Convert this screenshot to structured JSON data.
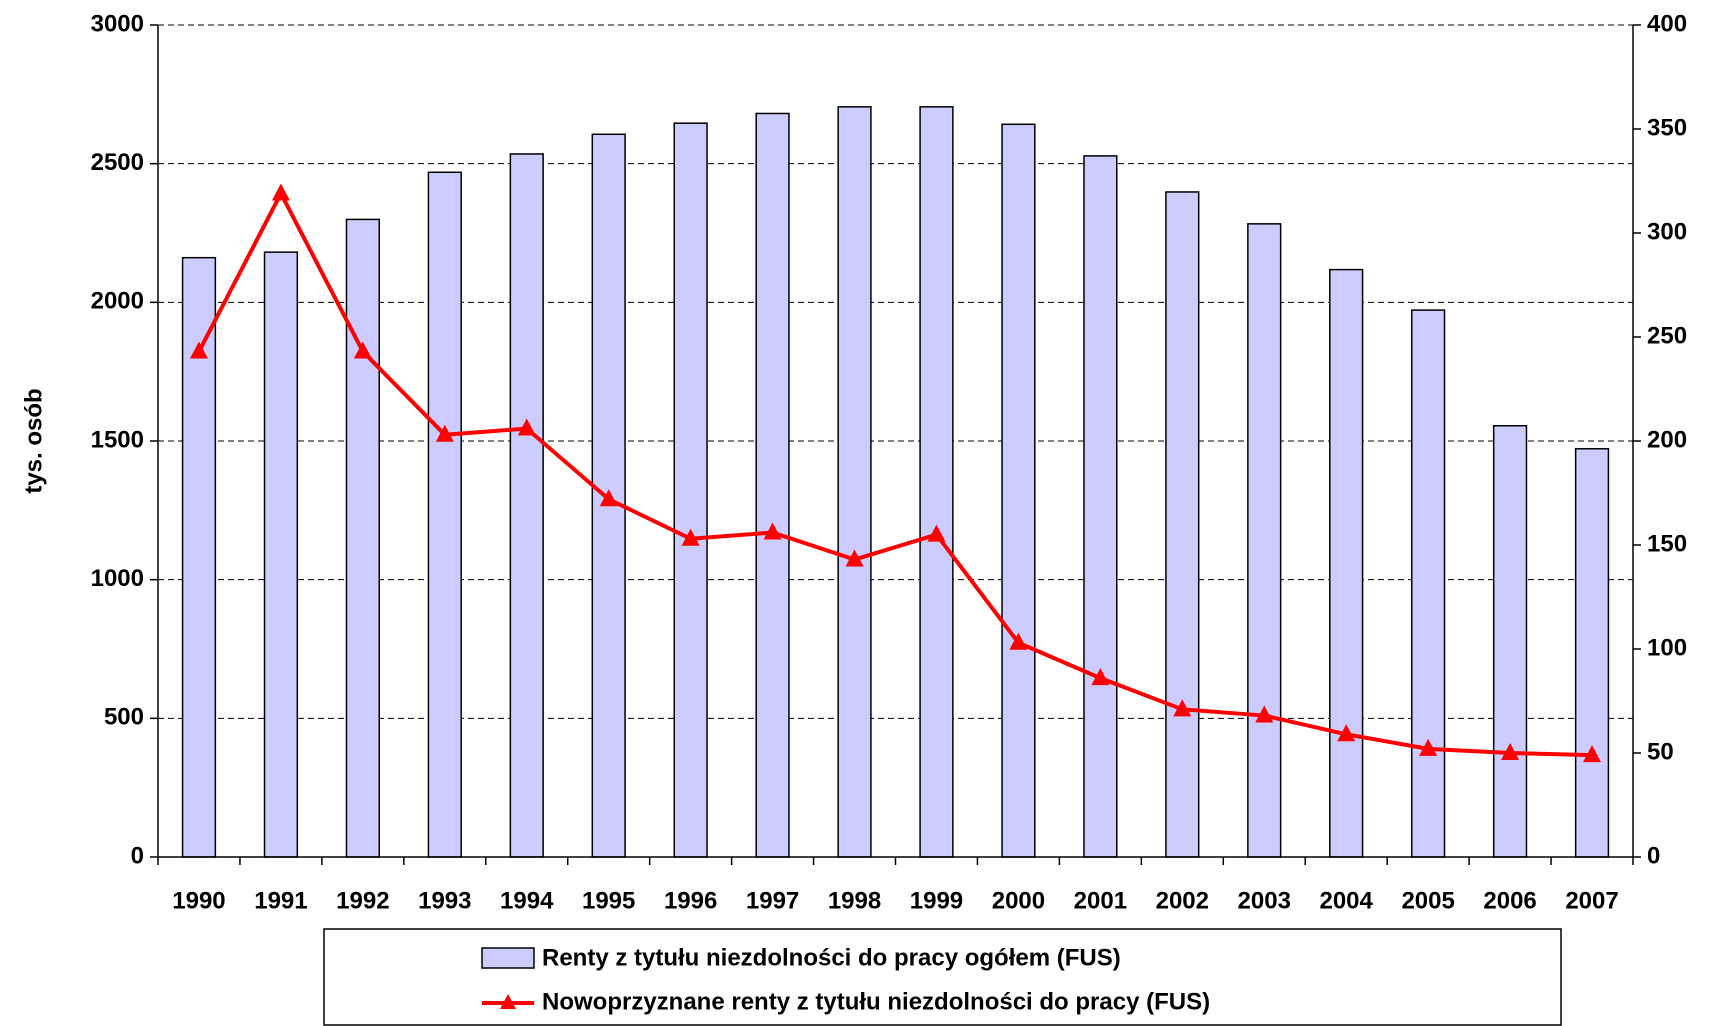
{
  "chart_data": {
    "type": "bar_line",
    "y_label": "tys. osób",
    "categories": [
      "1990",
      "1991",
      "1992",
      "1993",
      "1994",
      "1995",
      "1996",
      "1997",
      "1998",
      "1999",
      "2000",
      "2001",
      "2002",
      "2003",
      "2004",
      "2005",
      "2006",
      "2007"
    ],
    "series": [
      {
        "name": "Renty z tytułu niezdolności do pracy ogółem (FUS)",
        "type": "bar",
        "color": "#ccccff",
        "values": [
          2161,
          2181,
          2299,
          2469,
          2535,
          2606,
          2646,
          2681,
          2705,
          2705,
          2642,
          2528,
          2398,
          2283,
          2118,
          1972,
          1555,
          1472
        ]
      },
      {
        "name": "Nowoprzyznane renty z tytułu niezdolności do pracy (FUS)",
        "type": "line",
        "color": "#ff0000",
        "axis": "y2",
        "values": [
          243,
          319,
          243,
          203,
          206,
          172,
          153,
          156,
          143,
          155,
          103,
          86,
          71,
          68,
          59,
          52,
          50,
          49
        ]
      }
    ],
    "ylim": [
      0,
      3000
    ],
    "yticks": [
      0,
      500,
      1000,
      1500,
      2000,
      2500,
      3000
    ],
    "y2lim": [
      0,
      400
    ],
    "y2ticks": [
      0,
      50,
      100,
      150,
      200,
      250,
      300,
      350,
      400
    ],
    "grid": true
  }
}
